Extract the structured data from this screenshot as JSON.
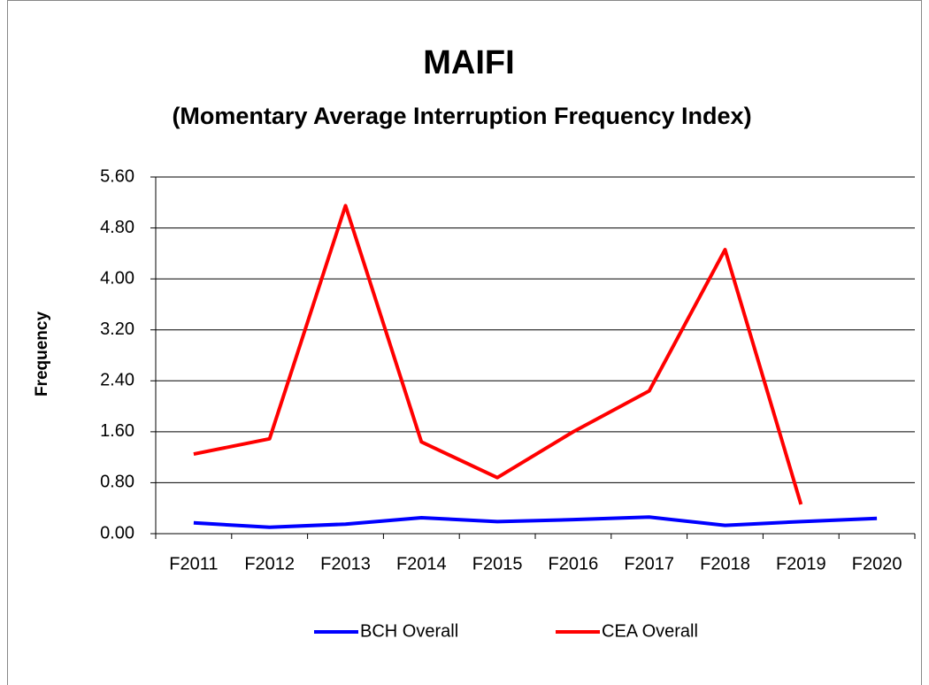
{
  "chart_data": {
    "type": "line",
    "title": "MAIFI",
    "subtitle": "(Momentary Average Interruption Frequency Index)",
    "y_label": "Frequency",
    "categories": [
      "F2011",
      "F2012",
      "F2013",
      "F2014",
      "F2015",
      "F2016",
      "F2017",
      "F2018",
      "F2019",
      "F2020"
    ],
    "series": [
      {
        "name": "BCH Overall",
        "color": "#0000ff",
        "values": [
          0.17,
          0.1,
          0.15,
          0.25,
          0.19,
          0.22,
          0.26,
          0.13,
          0.19,
          0.24
        ]
      },
      {
        "name": "CEA Overall",
        "color": "#ff0000",
        "values": [
          1.25,
          1.49,
          5.15,
          1.44,
          0.88,
          1.6,
          2.24,
          4.46,
          0.46,
          null
        ]
      }
    ],
    "ylim": [
      0,
      5.6
    ],
    "yticks": [
      {
        "value": 0,
        "label": "0.00"
      },
      {
        "value": 0.8,
        "label": "0.80"
      },
      {
        "value": 1.6,
        "label": "1.60"
      },
      {
        "value": 2.4,
        "label": "2.40"
      },
      {
        "value": 3.2,
        "label": "3.20"
      },
      {
        "value": 4,
        "label": "4.00"
      },
      {
        "value": 4.8,
        "label": "4.80"
      },
      {
        "value": 5.6,
        "label": "5.60"
      }
    ],
    "grid": true,
    "legend": "bottom"
  }
}
